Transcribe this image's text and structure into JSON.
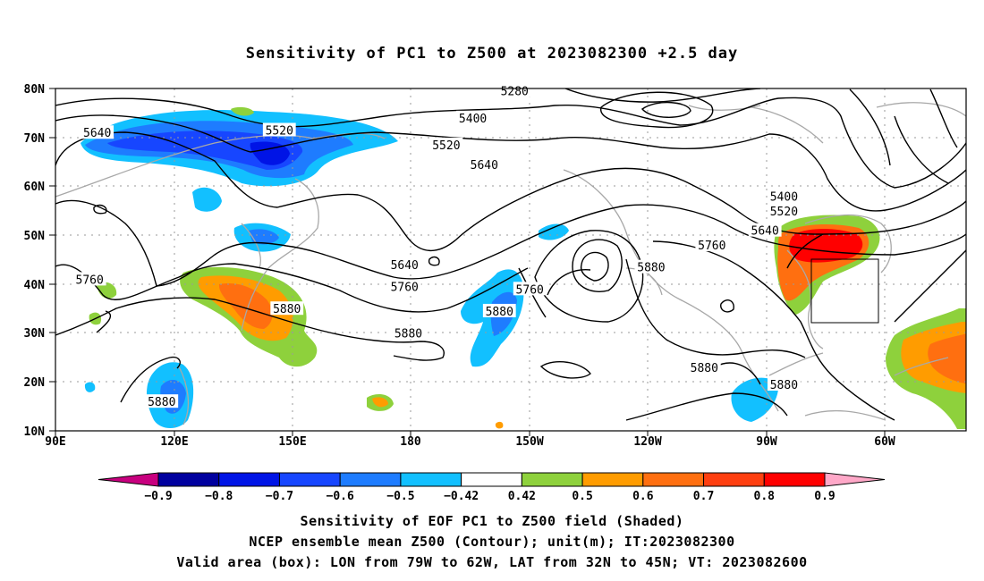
{
  "title": "Sensitivity of PC1 to Z500 at 2023082300 +2.5 day",
  "map": {
    "lat_labels": [
      "80N",
      "70N",
      "60N",
      "50N",
      "40N",
      "30N",
      "20N",
      "10N"
    ],
    "lon_labels": [
      "90E",
      "120E",
      "150E",
      "180",
      "150W",
      "120W",
      "90W",
      "60W"
    ],
    "contour_labels": [
      {
        "text": "5280",
        "lon": 211,
        "lat": 79.5
      },
      {
        "text": "5400",
        "lon": 200,
        "lat": 74
      },
      {
        "text": "5400",
        "lon": 282,
        "lat": 58
      },
      {
        "text": "5520",
        "lon": 149,
        "lat": 71.5
      },
      {
        "text": "5520",
        "lon": 193,
        "lat": 68.5
      },
      {
        "text": "5520",
        "lon": 282,
        "lat": 55
      },
      {
        "text": "5640",
        "lon": 101,
        "lat": 71
      },
      {
        "text": "5640",
        "lon": 203,
        "lat": 64.5
      },
      {
        "text": "5640",
        "lon": 182,
        "lat": 44
      },
      {
        "text": "5640",
        "lon": 277,
        "lat": 51
      },
      {
        "text": "5760",
        "lon": 99,
        "lat": 41
      },
      {
        "text": "5760",
        "lon": 182,
        "lat": 39.5
      },
      {
        "text": "5760",
        "lon": 215,
        "lat": 39
      },
      {
        "text": "5760",
        "lon": 263,
        "lat": 48
      },
      {
        "text": "5880",
        "lon": 151,
        "lat": 35
      },
      {
        "text": "5880",
        "lon": 183,
        "lat": 30
      },
      {
        "text": "5880",
        "lon": 207,
        "lat": 34.5
      },
      {
        "text": "5880",
        "lon": 247,
        "lat": 43.5
      },
      {
        "text": "5880",
        "lon": 118,
        "lat": 16
      },
      {
        "text": "5880",
        "lon": 261,
        "lat": 23
      },
      {
        "text": "5880",
        "lon": 282,
        "lat": 19.5
      }
    ],
    "valid_box": {
      "lon_range": [
        "79W",
        "62W"
      ],
      "lat_range": [
        "32N",
        "45N"
      ]
    }
  },
  "colorbar": {
    "labels": [
      "-0.9",
      "-0.8",
      "-0.7",
      "-0.6",
      "-0.5",
      "-0.42",
      "0.42",
      "0.5",
      "0.6",
      "0.7",
      "0.8",
      "0.9"
    ],
    "colors": [
      "#00009f",
      "#0014e6",
      "#1746ff",
      "#1e7cff",
      "#12c0ff",
      "#ffffff",
      "#8ed13c",
      "#ff9c00",
      "#ff6f10",
      "#ff3f10",
      "#ff0000"
    ],
    "end_low": "#c8007f",
    "end_high": "#ffa8c8"
  },
  "caption": [
    "Sensitivity of EOF PC1 to Z500 field (Shaded)",
    "NCEP ensemble mean Z500 (Contour); unit(m); IT:2023082300",
    "Valid area (box): LON from 79W to 62W, LAT from 32N to 45N; VT: 2023082600"
  ]
}
